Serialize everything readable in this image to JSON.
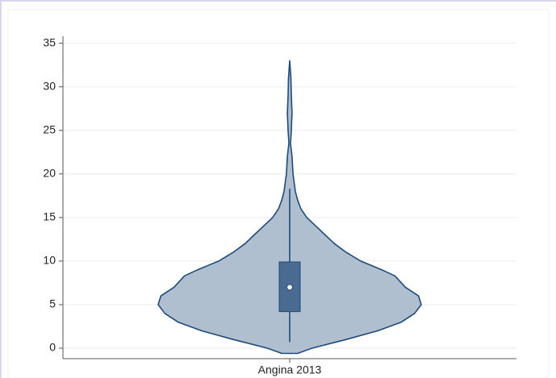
{
  "chart_data": {
    "type": "violin",
    "categories": [
      "Angina 2013"
    ],
    "ylim": [
      -1.2,
      35.8
    ],
    "yticks": [
      0,
      5,
      10,
      15,
      20,
      25,
      30,
      35
    ],
    "grid": true,
    "color": "#b0bfd0",
    "edge_color": "#1f4a78",
    "box_color": "#4a6a8f",
    "density": {
      "y": [
        -0.6,
        0,
        1,
        2,
        3,
        4,
        5,
        6,
        7,
        8.3,
        9,
        10,
        11,
        12,
        13,
        14,
        15,
        16,
        17,
        18,
        20,
        22,
        23.5,
        25,
        27,
        29,
        31,
        33
      ],
      "width": [
        0.06,
        0.17,
        0.43,
        0.67,
        0.85,
        0.95,
        1.0,
        0.98,
        0.88,
        0.8,
        0.7,
        0.54,
        0.43,
        0.34,
        0.27,
        0.2,
        0.13,
        0.085,
        0.06,
        0.043,
        0.025,
        0.018,
        0.006,
        0.012,
        0.018,
        0.012,
        0.009,
        0
      ]
    },
    "box": {
      "whisker_low": 0.7,
      "q1": 4.2,
      "median": 7,
      "q3": 9.9,
      "whisker_high": 18.3
    }
  }
}
